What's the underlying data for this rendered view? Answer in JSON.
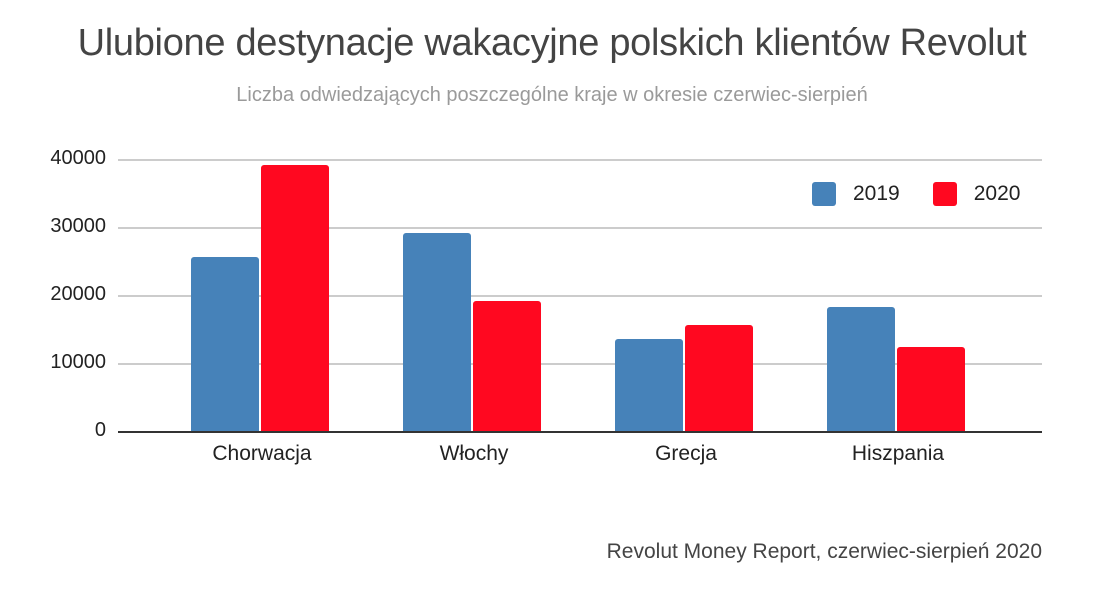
{
  "header": {
    "title": "Ulubione destynacje wakacyjne polskich klientów Revolut",
    "subtitle": "Liczba odwiedzających poszczególne kraje w okresie czerwiec-sierpień"
  },
  "axis": {
    "y_ticks": [
      "40000",
      "30000",
      "20000",
      "10000",
      "0"
    ]
  },
  "legend": {
    "items": [
      {
        "label": "2019",
        "color": "#4682b9"
      },
      {
        "label": "2020",
        "color": "#ff0820"
      }
    ]
  },
  "source": "Revolut Money Report, czerwiec-sierpień 2020",
  "chart_data": {
    "type": "bar",
    "title": "Ulubione destynacje wakacyjne polskich klientów Revolut",
    "subtitle": "Liczba odwiedzających poszczególne kraje w okresie czerwiec-sierpień",
    "xlabel": "",
    "ylabel": "",
    "categories": [
      "Chorwacja",
      "Włochy",
      "Grecja",
      "Hiszpania"
    ],
    "series": [
      {
        "name": "2019",
        "color": "#4682b9",
        "values": [
          25700,
          29300,
          13700,
          18400
        ]
      },
      {
        "name": "2020",
        "color": "#ff0820",
        "values": [
          39300,
          19300,
          15700,
          12500
        ]
      }
    ],
    "ylim": [
      0,
      40000
    ],
    "yticks": [
      0,
      10000,
      20000,
      30000,
      40000
    ],
    "grid": true,
    "legend_position": "top-right",
    "annotation": "Revolut Money Report, czerwiec-sierpień 2020"
  }
}
